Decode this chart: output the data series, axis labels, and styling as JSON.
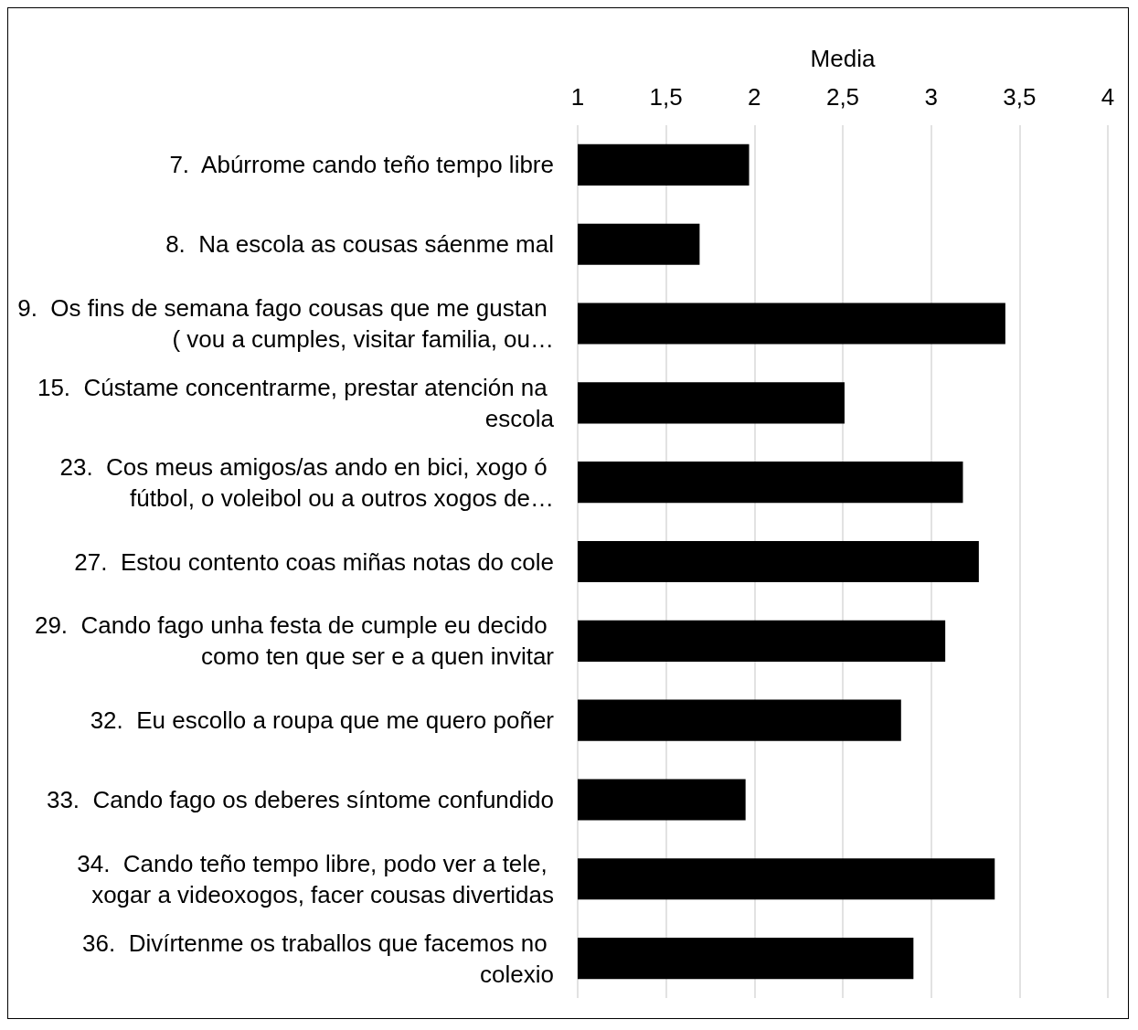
{
  "chart_data": {
    "type": "bar",
    "orientation": "horizontal",
    "xlabel": "Media",
    "categories": [
      "7.  Abúrrome cando teño tempo libre",
      "8.  Na escola as cousas sáenme mal",
      "9.  Os fins de semana fago cousas que me gustan ( vou a cumples, visitar familia, ou…",
      "15.  Cústame concentrarme, prestar atención na escola",
      "23.  Cos meus amigos/as ando en bici, xogo ó fútbol, o voleibol ou a outros xogos de…",
      "27.  Estou contento coas miñas notas do cole",
      "29.  Cando fago unha festa de cumple eu decido como ten que ser e a quen invitar",
      "32.  Eu escollo a roupa que me quero poñer",
      "33.  Cando fago os deberes síntome confundido",
      "34.  Cando teño tempo libre, podo ver a tele, xogar a videoxogos, facer cousas divertidas",
      "36.  Divírtenme os traballos que facemos no colexio"
    ],
    "values": [
      1.97,
      1.69,
      3.42,
      2.51,
      3.18,
      3.27,
      3.08,
      2.83,
      1.95,
      3.36,
      2.9
    ],
    "color": "#000000",
    "xlim": [
      1,
      4
    ],
    "xticks": [
      1,
      {
        "value": 1.5,
        "label": "1,5"
      },
      2,
      {
        "value": 2.5,
        "label": "2,5"
      },
      3,
      {
        "value": 3.5,
        "label": "3,5"
      },
      4
    ],
    "grid": "x"
  }
}
